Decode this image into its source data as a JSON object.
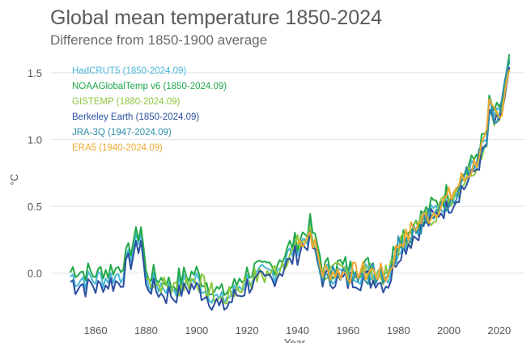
{
  "chart_data": {
    "type": "line",
    "title": "Global mean temperature 1850-2024",
    "subtitle": "Difference from 1850-1900 average",
    "xlabel": "Year",
    "ylabel": "°C",
    "xlim": [
      1842,
      2030
    ],
    "ylim": [
      -0.33,
      1.62
    ],
    "xticks": [
      1860,
      1880,
      1900,
      1920,
      1940,
      1960,
      1980,
      2000,
      2020
    ],
    "yticks": [
      0.0,
      0.5,
      1.0,
      1.5
    ],
    "ytick_labels": [
      "0.0",
      "0.5",
      "1.0",
      "1.5"
    ],
    "grid": "horizontal",
    "legend_position": "top-left",
    "series": [
      {
        "name": "HadCRUT5 (1850-2024.09)",
        "color": "#4ab8d9",
        "start": 1850,
        "offset": 0.0,
        "noise": 0.03,
        "seed": 11
      },
      {
        "name": "NOAAGlobalTemp v6 (1850-2024.09)",
        "color": "#21a84a",
        "start": 1850,
        "offset": 0.05,
        "noise": 0.04,
        "seed": 23
      },
      {
        "name": "GISTEMP (1880-2024.09)",
        "color": "#8cc63f",
        "start": 1880,
        "offset": 0.0,
        "noise": 0.03,
        "seed": 37
      },
      {
        "name": "Berkeley Earth (1850-2024.09)",
        "color": "#2b4fa0",
        "start": 1850,
        "offset": -0.05,
        "noise": 0.04,
        "seed": 41
      },
      {
        "name": "JRA-3Q (1947-2024.09)",
        "color": "#2a8fa8",
        "start": 1947,
        "offset": -0.01,
        "noise": 0.02,
        "seed": 53
      },
      {
        "name": "ERA5 (1940-2024.09)",
        "color": "#f0a830",
        "start": 1940,
        "offset": 0.01,
        "noise": 0.025,
        "seed": 67
      }
    ],
    "base_years": [
      1850,
      1860,
      1870,
      1878,
      1880,
      1890,
      1900,
      1910,
      1920,
      1930,
      1940,
      1945,
      1950,
      1960,
      1970,
      1976,
      1980,
      1990,
      2000,
      2010,
      2015,
      2016,
      2020,
      2023,
      2024
    ],
    "base_values": [
      -0.03,
      -0.05,
      -0.01,
      0.3,
      -0.05,
      -0.12,
      -0.05,
      -0.22,
      -0.05,
      0.0,
      0.2,
      0.3,
      0.0,
      0.0,
      0.0,
      -0.02,
      0.2,
      0.4,
      0.55,
      0.8,
      1.0,
      1.22,
      1.15,
      1.45,
      1.55
    ]
  }
}
